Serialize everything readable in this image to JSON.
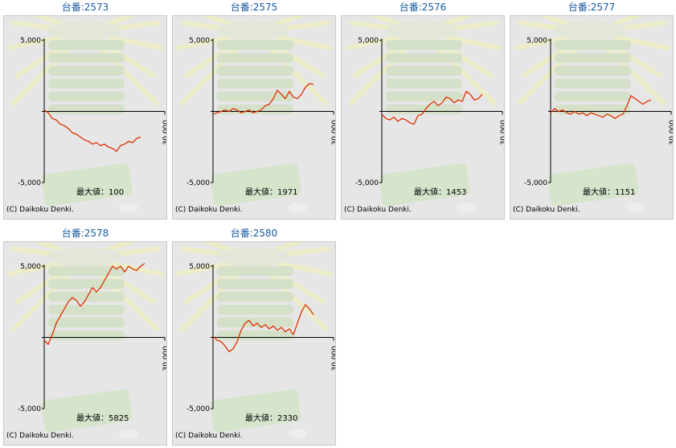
{
  "colors": {
    "title": "#1a5aa0",
    "line": "#e03000",
    "axis": "#000000",
    "panel_bg": "#e6e6e6",
    "deco": "#c6dcb0"
  },
  "copyright": "(C) Daikoku Denki.",
  "max_label_prefix": "最大値：",
  "chart_data": [
    {
      "type": "line",
      "title": "台番:2573",
      "max_value": 100,
      "yticks": [
        "5,000",
        "-5,000"
      ],
      "xtick": "30,000",
      "ylim": [
        -5000,
        5000
      ],
      "xlim": [
        0,
        30000
      ],
      "x": [
        0,
        1000,
        2000,
        3000,
        4000,
        5000,
        6000,
        7000,
        8000,
        9000,
        10000,
        11000,
        12000,
        13000,
        14000,
        15000,
        16000,
        17000,
        18000,
        19000,
        20000,
        21000,
        22000,
        23000,
        24000
      ],
      "y": [
        100,
        -100,
        -500,
        -600,
        -900,
        -1000,
        -1200,
        -1500,
        -1600,
        -1800,
        -2000,
        -2100,
        -2300,
        -2200,
        -2400,
        -2300,
        -2500,
        -2600,
        -2800,
        -2400,
        -2300,
        -2100,
        -2200,
        -1900,
        -1800
      ]
    },
    {
      "type": "line",
      "title": "台番:2575",
      "max_value": 1971,
      "yticks": [
        "5,000",
        "-5,000"
      ],
      "xtick": "30,000",
      "ylim": [
        -5000,
        5000
      ],
      "xlim": [
        0,
        30000
      ],
      "x": [
        0,
        1000,
        2000,
        3000,
        4000,
        5000,
        6000,
        7000,
        8000,
        9000,
        10000,
        11000,
        12000,
        13000,
        14000,
        15000,
        16000,
        17000,
        18000,
        19000,
        20000,
        21000,
        22000,
        23000,
        24000,
        25000
      ],
      "y": [
        -200,
        -100,
        0,
        100,
        0,
        200,
        100,
        -100,
        0,
        100,
        -100,
        0,
        100,
        400,
        500,
        900,
        1500,
        1200,
        900,
        1400,
        1000,
        900,
        1200,
        1700,
        1950,
        1900
      ]
    },
    {
      "type": "line",
      "title": "台番:2576",
      "max_value": 1453,
      "yticks": [
        "5,000",
        "-5,000"
      ],
      "xtick": "30,000",
      "ylim": [
        -5000,
        5000
      ],
      "xlim": [
        0,
        30000
      ],
      "x": [
        0,
        1000,
        2000,
        3000,
        4000,
        5000,
        6000,
        7000,
        8000,
        9000,
        10000,
        11000,
        12000,
        13000,
        14000,
        15000,
        16000,
        17000,
        18000,
        19000,
        20000,
        21000,
        22000,
        23000,
        24000,
        25000
      ],
      "y": [
        -200,
        -500,
        -600,
        -400,
        -700,
        -500,
        -600,
        -800,
        -900,
        -300,
        -200,
        200,
        500,
        700,
        400,
        600,
        1000,
        900,
        600,
        800,
        700,
        1400,
        1200,
        800,
        900,
        1200
      ]
    },
    {
      "type": "line",
      "title": "台番:2577",
      "max_value": 1151,
      "yticks": [
        "5,000",
        "-5,000"
      ],
      "xtick": "30,000",
      "ylim": [
        -5000,
        5000
      ],
      "xlim": [
        0,
        30000
      ],
      "x": [
        0,
        1000,
        2000,
        3000,
        4000,
        5000,
        6000,
        7000,
        8000,
        9000,
        10000,
        11000,
        12000,
        13000,
        14000,
        15000,
        16000,
        17000,
        18000,
        19000,
        20000,
        21000,
        22000,
        23000,
        24000,
        25000
      ],
      "y": [
        -100,
        200,
        0,
        100,
        -100,
        -200,
        0,
        -200,
        -100,
        -300,
        -100,
        -200,
        -300,
        -400,
        -200,
        -300,
        -500,
        -300,
        -200,
        400,
        1100,
        900,
        700,
        500,
        700,
        800
      ]
    },
    {
      "type": "line",
      "title": "台番:2578",
      "max_value": 5825,
      "yticks": [
        "5,000",
        "-5,000"
      ],
      "xtick": "30,000",
      "ylim": [
        -5000,
        5000
      ],
      "xlim": [
        0,
        30000
      ],
      "x": [
        0,
        1000,
        2000,
        3000,
        4000,
        5000,
        6000,
        7000,
        8000,
        9000,
        10000,
        11000,
        12000,
        13000,
        14000,
        15000,
        16000,
        17000,
        18000,
        19000,
        20000,
        21000,
        22000,
        23000,
        24000,
        25000
      ],
      "y": [
        -200,
        -500,
        200,
        1000,
        1500,
        2000,
        2500,
        2800,
        2600,
        2200,
        2500,
        3000,
        3500,
        3200,
        3500,
        4000,
        4500,
        5000,
        4800,
        5000,
        4600,
        5000,
        4800,
        4700,
        5000,
        5200
      ]
    },
    {
      "type": "line",
      "title": "台番:2580",
      "max_value": 2330,
      "yticks": [
        "5,000",
        "-5,000"
      ],
      "xtick": "30,000",
      "ylim": [
        -5000,
        5000
      ],
      "xlim": [
        0,
        30000
      ],
      "x": [
        0,
        1000,
        2000,
        3000,
        4000,
        5000,
        6000,
        7000,
        8000,
        9000,
        10000,
        11000,
        12000,
        13000,
        14000,
        15000,
        16000,
        17000,
        18000,
        19000,
        20000,
        21000,
        22000,
        23000,
        24000,
        25000
      ],
      "y": [
        100,
        -200,
        -300,
        -600,
        -1000,
        -800,
        -300,
        500,
        1000,
        1200,
        800,
        1000,
        700,
        900,
        600,
        800,
        500,
        700,
        400,
        600,
        200,
        1000,
        1800,
        2300,
        2000,
        1600
      ]
    }
  ]
}
